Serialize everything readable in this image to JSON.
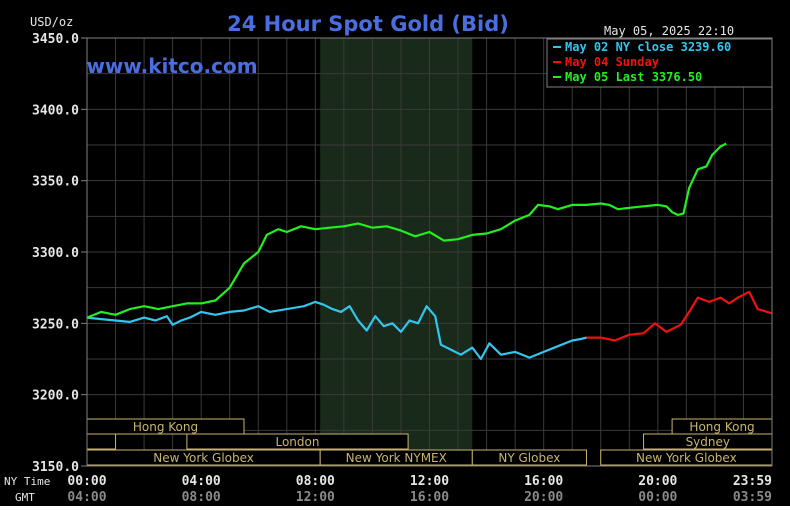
{
  "chart_data": {
    "type": "line",
    "title": "24 Hour Spot Gold (Bid)",
    "units_label": "USD/oz",
    "watermark": "www.kitco.com",
    "timestamp": "May 05, 2025 22:10",
    "ylim": [
      3150,
      3450
    ],
    "y_ticks": [
      3150,
      3200,
      3250,
      3300,
      3350,
      3400,
      3450
    ],
    "y_tick_labels": [
      "3150.0",
      "3200.0",
      "3250.0",
      "3300.0",
      "3350.0",
      "3400.0",
      "3450.0"
    ],
    "xlim": [
      0,
      24
    ],
    "x_ticks": [
      0,
      4,
      8,
      12,
      16,
      20,
      23.983
    ],
    "x_row_labels": [
      "NY Time",
      "GMT"
    ],
    "x_tick_labels_ny": [
      "00:00",
      "04:00",
      "08:00",
      "12:00",
      "16:00",
      "20:00",
      "23:59"
    ],
    "x_tick_labels_gmt": [
      "04:00",
      "08:00",
      "12:00",
      "16:00",
      "20:00",
      "00:00",
      "03:59"
    ],
    "shaded_range": [
      8.17,
      13.5
    ],
    "grid": true,
    "legend_position": "top-right",
    "series": [
      {
        "name": "May 02 NY close 3239.60",
        "color": "#33c5ee",
        "points": [
          [
            0,
            3254
          ],
          [
            0.5,
            3253
          ],
          [
            1,
            3252
          ],
          [
            1.5,
            3251
          ],
          [
            2,
            3254
          ],
          [
            2.4,
            3252
          ],
          [
            2.8,
            3255
          ],
          [
            3,
            3249
          ],
          [
            3.3,
            3252
          ],
          [
            3.6,
            3254
          ],
          [
            4,
            3258
          ],
          [
            4.5,
            3256
          ],
          [
            5,
            3258
          ],
          [
            5.5,
            3259
          ],
          [
            6,
            3262
          ],
          [
            6.4,
            3258
          ],
          [
            7,
            3260
          ],
          [
            7.6,
            3262
          ],
          [
            8,
            3265
          ],
          [
            8.3,
            3263
          ],
          [
            8.6,
            3260
          ],
          [
            8.9,
            3258
          ],
          [
            9.2,
            3262
          ],
          [
            9.5,
            3252
          ],
          [
            9.8,
            3245
          ],
          [
            10.1,
            3255
          ],
          [
            10.4,
            3248
          ],
          [
            10.7,
            3250
          ],
          [
            11,
            3244
          ],
          [
            11.3,
            3252
          ],
          [
            11.6,
            3250
          ],
          [
            11.9,
            3262
          ],
          [
            12.2,
            3255
          ],
          [
            12.4,
            3235
          ],
          [
            12.7,
            3232
          ],
          [
            13.1,
            3228
          ],
          [
            13.5,
            3233
          ],
          [
            13.8,
            3225
          ],
          [
            14.1,
            3236
          ],
          [
            14.5,
            3228
          ],
          [
            15,
            3230
          ],
          [
            15.5,
            3226
          ],
          [
            16,
            3230
          ],
          [
            16.5,
            3234
          ],
          [
            17,
            3238
          ],
          [
            17.3,
            3239
          ],
          [
            17.5,
            3240
          ]
        ]
      },
      {
        "name": "May 04 Sunday",
        "color": "#ee1111",
        "points": [
          [
            17.5,
            3240
          ],
          [
            18,
            3240
          ],
          [
            18.5,
            3238
          ],
          [
            19,
            3242
          ],
          [
            19.5,
            3243
          ],
          [
            19.9,
            3250
          ],
          [
            20.3,
            3244
          ],
          [
            20.8,
            3249
          ],
          [
            21.1,
            3258
          ],
          [
            21.4,
            3268
          ],
          [
            21.8,
            3265
          ],
          [
            22.2,
            3268
          ],
          [
            22.5,
            3264
          ],
          [
            22.8,
            3268
          ],
          [
            23.2,
            3272
          ],
          [
            23.5,
            3260
          ],
          [
            24,
            3257
          ]
        ]
      },
      {
        "name": "May 05 Last 3376.50",
        "color": "#22ee22",
        "points": [
          [
            0,
            3254
          ],
          [
            0.5,
            3258
          ],
          [
            1,
            3256
          ],
          [
            1.5,
            3260
          ],
          [
            2,
            3262
          ],
          [
            2.5,
            3260
          ],
          [
            3,
            3262
          ],
          [
            3.5,
            3264
          ],
          [
            4,
            3264
          ],
          [
            4.5,
            3266
          ],
          [
            5,
            3275
          ],
          [
            5.5,
            3292
          ],
          [
            6,
            3300
          ],
          [
            6.3,
            3312
          ],
          [
            6.7,
            3316
          ],
          [
            7,
            3314
          ],
          [
            7.5,
            3318
          ],
          [
            8,
            3316
          ],
          [
            8.5,
            3317
          ],
          [
            9,
            3318
          ],
          [
            9.5,
            3320
          ],
          [
            10,
            3317
          ],
          [
            10.5,
            3318
          ],
          [
            11,
            3315
          ],
          [
            11.5,
            3311
          ],
          [
            12,
            3314
          ],
          [
            12.5,
            3308
          ],
          [
            13,
            3309
          ],
          [
            13.5,
            3312
          ],
          [
            14,
            3313
          ],
          [
            14.5,
            3316
          ],
          [
            15,
            3322
          ],
          [
            15.5,
            3326
          ],
          [
            15.8,
            3333
          ],
          [
            16.2,
            3332
          ],
          [
            16.5,
            3330
          ],
          [
            17,
            3333
          ],
          [
            17.5,
            3333
          ],
          [
            18,
            3334
          ],
          [
            18.3,
            3333
          ],
          [
            18.6,
            3330
          ],
          [
            19,
            3331
          ],
          [
            19.5,
            3332
          ],
          [
            20,
            3333
          ],
          [
            20.3,
            3332
          ],
          [
            20.5,
            3328
          ],
          [
            20.7,
            3326
          ],
          [
            20.9,
            3327
          ],
          [
            21.1,
            3345
          ],
          [
            21.4,
            3358
          ],
          [
            21.7,
            3360
          ],
          [
            21.9,
            3368
          ],
          [
            22.2,
            3374
          ],
          [
            22.4,
            3376
          ]
        ]
      }
    ],
    "market_sessions": [
      {
        "label": "Hong Kong",
        "row": 0,
        "start": 0,
        "end": 5.5
      },
      {
        "label": "",
        "row": 1,
        "start": 0,
        "end": 1
      },
      {
        "label": "London",
        "row": 1,
        "start": 3.5,
        "end": 11.25
      },
      {
        "label": "New York Globex",
        "row": 2,
        "start": 0,
        "end": 8.17
      },
      {
        "label": "New York NYMEX",
        "row": 2,
        "start": 8.17,
        "end": 13.5
      },
      {
        "label": "NY Globex",
        "row": 2,
        "start": 13.5,
        "end": 17.5
      },
      {
        "label": "Hong Kong",
        "row": 0,
        "start": 20.5,
        "end": 24
      },
      {
        "label": "Sydney",
        "row": 1,
        "start": 19.5,
        "end": 24
      },
      {
        "label": "New York Globex",
        "row": 2,
        "start": 18,
        "end": 24
      }
    ]
  }
}
